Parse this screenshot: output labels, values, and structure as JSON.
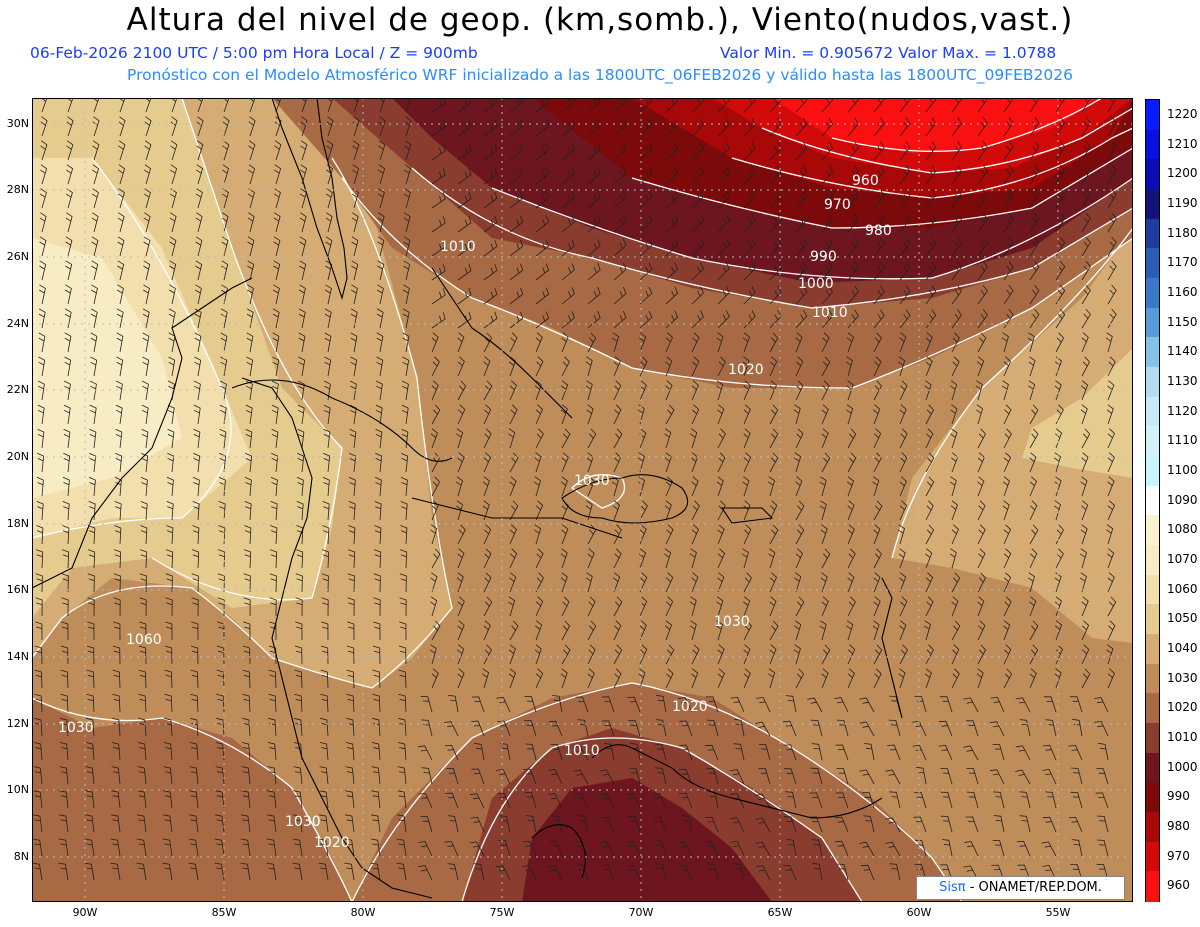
{
  "header": {
    "title": "Altura del nivel de geop. (km,somb.), Viento(nudos,vast.)",
    "subtitle_left": "06-Feb-2026  2100 UTC / 5:00 pm Hora Local / Z = 900mb",
    "subtitle_minmax": "Valor Min. = 0.905672  Valor Max. = 1.0788",
    "subtitle2": "Pronóstico con el Modelo Atmosférico WRF inicializado a las 1800UTC_06FEB2026 y válido hasta las  1800UTC_09FEB2026"
  },
  "map": {
    "lat_labels": [
      "30N",
      "28N",
      "26N",
      "24N",
      "22N",
      "20N",
      "18N",
      "16N",
      "14N",
      "12N",
      "10N",
      "8N"
    ],
    "lon_labels": [
      "90W",
      "85W",
      "80W",
      "75W",
      "70W",
      "65W",
      "60W",
      "55W"
    ],
    "contour_labels": [
      "960",
      "970",
      "980",
      "990",
      "1000",
      "1010",
      "1010",
      "1020",
      "1030",
      "1030",
      "1060",
      "1030",
      "1020",
      "1010",
      "1030",
      "1020"
    ]
  },
  "colorbar": {
    "levels": [
      "1220",
      "1210",
      "1200",
      "1190",
      "1180",
      "1170",
      "1160",
      "1150",
      "1140",
      "1130",
      "1120",
      "1110",
      "1100",
      "1090",
      "1080",
      "1070",
      "1060",
      "1050",
      "1040",
      "1030",
      "1020",
      "1010",
      "1000",
      "990",
      "980",
      "970",
      "960"
    ],
    "colors": [
      "#0a1cff",
      "#0a10e0",
      "#0a0cb4",
      "#141478",
      "#1e3ca0",
      "#2c5cb8",
      "#3c78c8",
      "#5a9ad8",
      "#86c2e6",
      "#b4dcf0",
      "#c8eaf6",
      "#d4f2fa",
      "#c8f4fc",
      "#ffffff",
      "#fbf2cf",
      "#f8ecc4",
      "#f2dfad",
      "#e6cb8f",
      "#d5ac73",
      "#bf8d5a",
      "#a86a44",
      "#8a3c2e",
      "#6e1620",
      "#7d0a0a",
      "#a80808",
      "#d20a0a",
      "#fa1010"
    ]
  },
  "credit": {
    "sis": "Sisπ",
    "org": " - ONAMET/REP.DOM."
  }
}
